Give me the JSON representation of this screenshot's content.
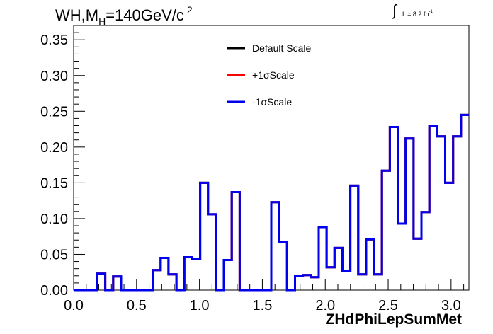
{
  "title": {
    "main": "WH,M",
    "sub": "H",
    "rest": "=140GeV/c",
    "sup": "2"
  },
  "lumi": {
    "integral": "∫",
    "label": "L = 8.2 fb",
    "sup": "-1"
  },
  "chart_data": {
    "type": "line",
    "style": "step-histogram",
    "xlabel": "ZHdPhiLepSumMet",
    "ylabel": "",
    "xlim": [
      0.0,
      3.1416
    ],
    "ylim": [
      0.0,
      0.37
    ],
    "x_ticks": [
      "0.0",
      "0.5",
      "1.0",
      "1.5",
      "2.0",
      "2.5",
      "3.0"
    ],
    "y_ticks": [
      "0.00",
      "0.05",
      "0.10",
      "0.15",
      "0.20",
      "0.25",
      "0.30",
      "0.35"
    ],
    "legend_position": "top-center",
    "bin_edges": [
      0.0,
      0.0628,
      0.1257,
      0.1885,
      0.2513,
      0.3142,
      0.377,
      0.4398,
      0.5027,
      0.5655,
      0.6283,
      0.6912,
      0.754,
      0.8168,
      0.8796,
      0.9425,
      1.0053,
      1.0681,
      1.131,
      1.1938,
      1.2566,
      1.3195,
      1.3823,
      1.4451,
      1.508,
      1.5708,
      1.6336,
      1.6965,
      1.7593,
      1.8221,
      1.885,
      1.9478,
      2.0106,
      2.0735,
      2.1363,
      2.1991,
      2.2619,
      2.3248,
      2.3876,
      2.4504,
      2.5133,
      2.5761,
      2.6389,
      2.7018,
      2.7646,
      2.8274,
      2.8903,
      2.9531,
      3.0159,
      3.0788,
      3.1416
    ],
    "series": [
      {
        "name": "Default Scale",
        "color": "#000000",
        "values": [
          0.0,
          0.0,
          0.0,
          0.023,
          0.0,
          0.019,
          0.0,
          0.0,
          0.0,
          0.0,
          0.028,
          0.045,
          0.022,
          0.0,
          0.046,
          0.043,
          0.15,
          0.106,
          0.0,
          0.042,
          0.137,
          0.0,
          0.0,
          0.0,
          0.0,
          0.123,
          0.067,
          0.0,
          0.02,
          0.021,
          0.018,
          0.088,
          0.032,
          0.059,
          0.027,
          0.146,
          0.022,
          0.071,
          0.022,
          0.167,
          0.228,
          0.093,
          0.212,
          0.072,
          0.109,
          0.229,
          0.215,
          0.15,
          0.215,
          0.245
        ]
      },
      {
        "name": "+1σScale",
        "color": "#ff0000",
        "values": [
          0.0,
          0.0,
          0.0,
          0.023,
          0.0,
          0.019,
          0.0,
          0.0,
          0.0,
          0.0,
          0.028,
          0.045,
          0.022,
          0.0,
          0.046,
          0.043,
          0.15,
          0.106,
          0.0,
          0.042,
          0.137,
          0.0,
          0.0,
          0.0,
          0.0,
          0.123,
          0.067,
          0.0,
          0.02,
          0.021,
          0.018,
          0.088,
          0.032,
          0.059,
          0.027,
          0.146,
          0.022,
          0.071,
          0.022,
          0.167,
          0.228,
          0.093,
          0.212,
          0.072,
          0.109,
          0.229,
          0.215,
          0.15,
          0.215,
          0.245
        ]
      },
      {
        "name": "-1σScale",
        "color": "#0000ee",
        "values": [
          0.0,
          0.0,
          0.0,
          0.023,
          0.0,
          0.019,
          0.0,
          0.0,
          0.0,
          0.0,
          0.028,
          0.045,
          0.022,
          0.0,
          0.046,
          0.043,
          0.15,
          0.106,
          0.0,
          0.042,
          0.137,
          0.0,
          0.0,
          0.0,
          0.0,
          0.123,
          0.067,
          0.0,
          0.02,
          0.021,
          0.018,
          0.088,
          0.032,
          0.059,
          0.027,
          0.146,
          0.022,
          0.071,
          0.022,
          0.167,
          0.228,
          0.093,
          0.212,
          0.072,
          0.109,
          0.229,
          0.215,
          0.15,
          0.215,
          0.245
        ]
      }
    ]
  }
}
